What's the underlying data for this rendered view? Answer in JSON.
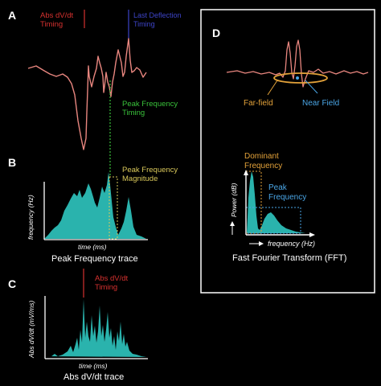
{
  "panels": {
    "A": {
      "letter": "A",
      "abs_timing_label": [
        "Abs dV/dt",
        "Timing"
      ],
      "last_deflection_label": [
        "Last Deflection",
        "Timing"
      ],
      "peak_freq_timing_label": [
        "Peak Frequency",
        "Timing"
      ]
    },
    "B": {
      "letter": "B",
      "magnitude_label": [
        "Peak Frequency",
        "Magnitude"
      ],
      "y_axis_label": "frequency (Hz)",
      "x_axis_label": "time (ms)",
      "caption": "Peak Frequency trace"
    },
    "C": {
      "letter": "C",
      "abs_timing_label": [
        "Abs dV/dt",
        "Timing"
      ],
      "y_axis_label": "Abs dV/dt (mV/ms)",
      "x_axis_label": "time (ms)",
      "caption": "Abs dV/dt trace"
    },
    "D": {
      "letter": "D",
      "far_field_label": "Far-field",
      "near_field_label": "Near Field",
      "dominant_label": [
        "Dominant",
        "Frequency"
      ],
      "peak_label": [
        "Peak",
        "Frequency"
      ],
      "y_axis_label": "Power (dB)",
      "x_axis_label": "frequency (Hz)",
      "caption": "Fast Fourier Transform (FFT)"
    }
  },
  "colors": {
    "signal": "#e8867f",
    "fill": "#2ab3ad",
    "red": "#d6312f",
    "blue": "#3d44c8",
    "green": "#39c13a",
    "yellow": "#d9c85a",
    "orange": "#e3a23a",
    "near": "#4aa6e6",
    "white": "#ffffff",
    "axis": "#ffffff"
  }
}
